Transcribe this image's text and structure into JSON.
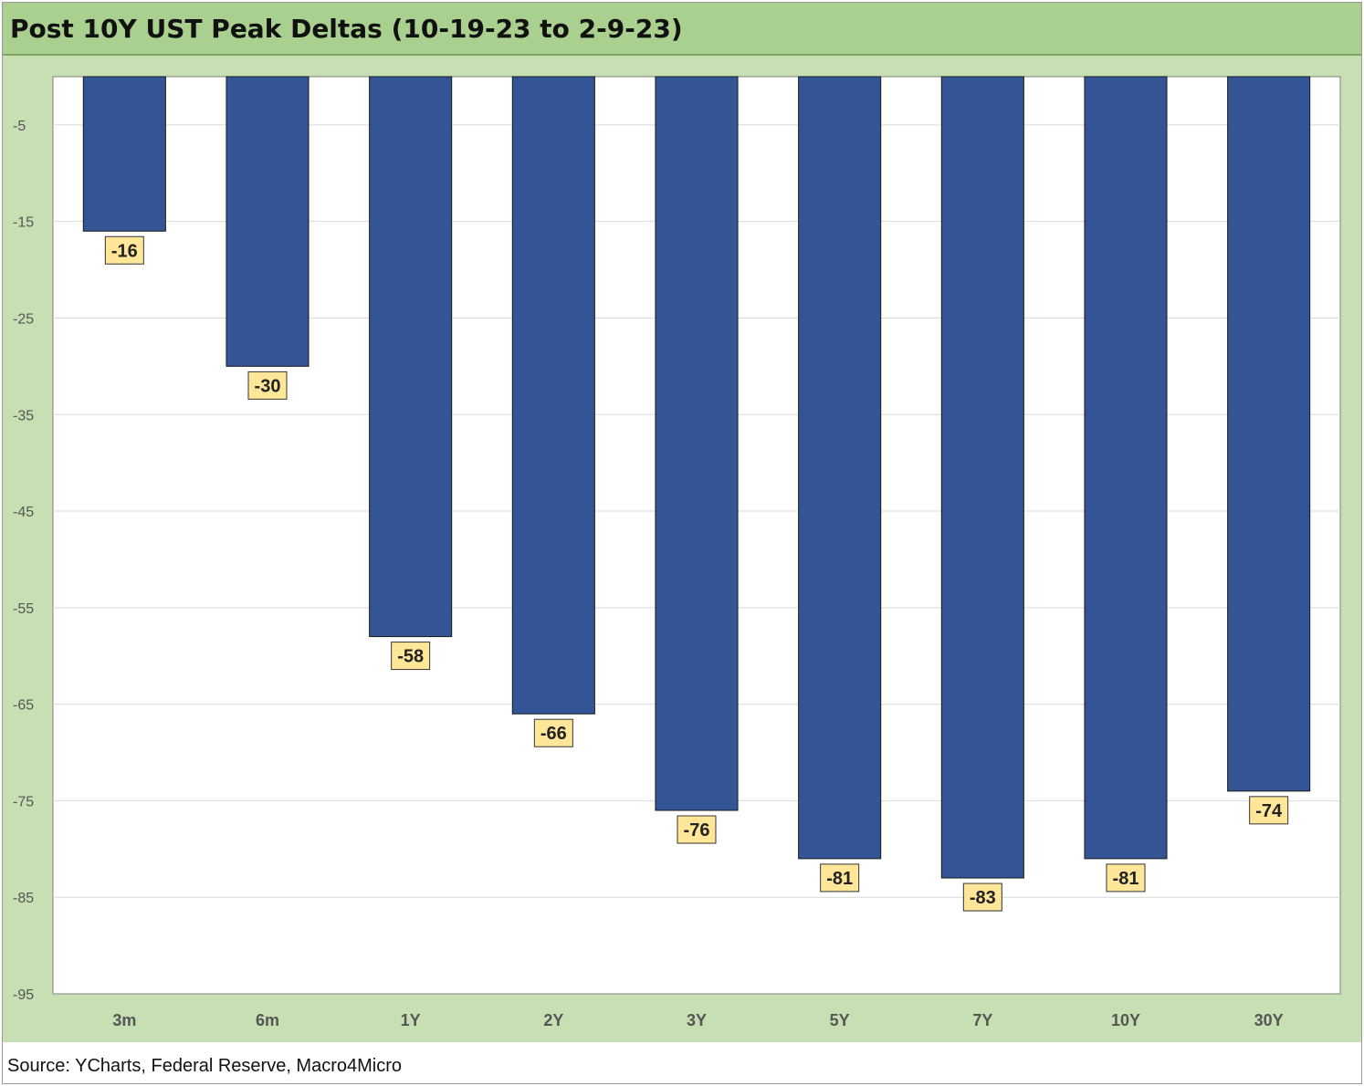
{
  "title": "Post 10Y UST Peak Deltas (10-19-23 to 2-9-23)",
  "source": "Source: YCharts, Federal Reserve, Macro4Micro",
  "colors": {
    "bar": "#335595",
    "label_box": "#ffe699",
    "title_bg": "#a9d08e",
    "chart_bg": "#c6e0b4",
    "plot_bg": "#ffffff"
  },
  "chart_data": {
    "type": "bar",
    "title": "Post 10Y UST Peak Deltas (10-19-23 to 2-9-23)",
    "categories": [
      "3m",
      "6m",
      "1Y",
      "2Y",
      "3Y",
      "5Y",
      "7Y",
      "10Y",
      "30Y"
    ],
    "values": [
      -16,
      -30,
      -58,
      -66,
      -76,
      -81,
      -83,
      -81,
      -74
    ],
    "data_labels": [
      "-16",
      "-30",
      "-58",
      "-66",
      "-76",
      "-81",
      "-83",
      "-81",
      "-74"
    ],
    "ylim": [
      -95,
      0
    ],
    "yticks": [
      -5,
      -15,
      -25,
      -35,
      -45,
      -55,
      -65,
      -75,
      -85,
      -95
    ],
    "xlabel": "",
    "ylabel": "",
    "grid": true,
    "legend": "none"
  }
}
